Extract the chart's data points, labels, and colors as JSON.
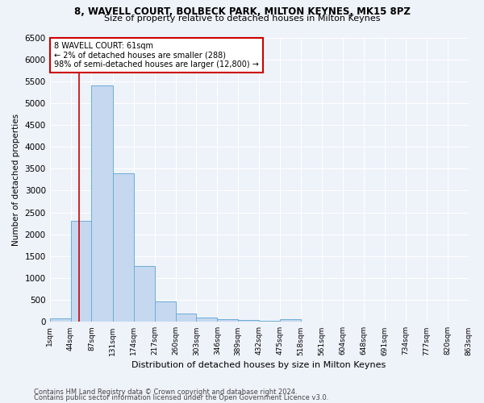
{
  "title1": "8, WAVELL COURT, BOLBECK PARK, MILTON KEYNES, MK15 8PZ",
  "title2": "Size of property relative to detached houses in Milton Keynes",
  "xlabel": "Distribution of detached houses by size in Milton Keynes",
  "ylabel": "Number of detached properties",
  "footer1": "Contains HM Land Registry data © Crown copyright and database right 2024.",
  "footer2": "Contains public sector information licensed under the Open Government Licence v3.0.",
  "bins": [
    1,
    44,
    87,
    131,
    174,
    217,
    260,
    303,
    346,
    389,
    432,
    475,
    518,
    561,
    604,
    648,
    691,
    734,
    777,
    820,
    863
  ],
  "values": [
    80,
    2300,
    5400,
    3400,
    1280,
    470,
    195,
    90,
    55,
    35,
    18,
    55,
    0,
    0,
    0,
    0,
    0,
    0,
    0,
    0
  ],
  "bar_color": "#c5d8f0",
  "bar_edge_color": "#6baed6",
  "property_line_x": 61,
  "property_line_color": "#cc0000",
  "ylim": [
    0,
    6500
  ],
  "yticks": [
    0,
    500,
    1000,
    1500,
    2000,
    2500,
    3000,
    3500,
    4000,
    4500,
    5000,
    5500,
    6000,
    6500
  ],
  "annotation_text": "8 WAVELL COURT: 61sqm\n← 2% of detached houses are smaller (288)\n98% of semi-detached houses are larger (12,800) →",
  "annotation_box_color": "#cc0000",
  "bg_color": "#eef2f9",
  "grid_color": "#ffffff",
  "tick_labels": [
    "1sqm",
    "44sqm",
    "87sqm",
    "131sqm",
    "174sqm",
    "217sqm",
    "260sqm",
    "303sqm",
    "346sqm",
    "389sqm",
    "432sqm",
    "475sqm",
    "518sqm",
    "561sqm",
    "604sqm",
    "648sqm",
    "691sqm",
    "734sqm",
    "777sqm",
    "820sqm",
    "863sqm"
  ]
}
